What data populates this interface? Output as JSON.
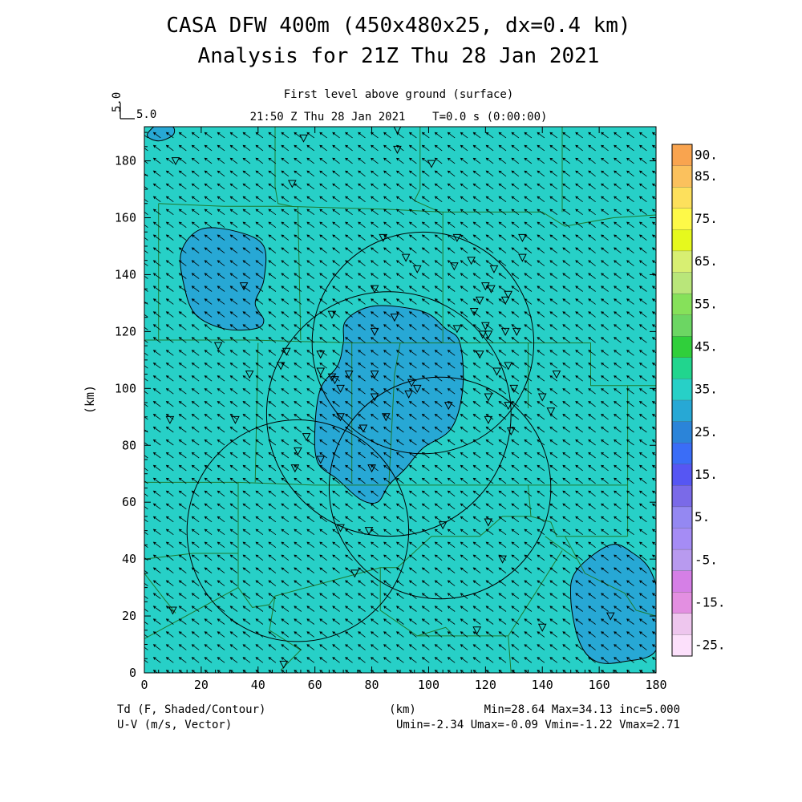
{
  "title_line1": "CASA DFW 400m (450x480x25, dx=0.4 km)",
  "title_line2": "Analysis for 21Z Thu 28 Jan 2021",
  "subtitle_level": "First level above ground (surface)",
  "subtitle_time": "21:50 Z Thu 28 Jan 2021    T=0.0 s (0:00:00)",
  "ref_vector": {
    "axis_label": "5.0",
    "label": "5.0"
  },
  "xlabel": "(km)",
  "ylabel": "(km)",
  "footer": {
    "left1": "Td (F, Shaded/Contour)",
    "left2": "U-V (m/s, Vector)",
    "center": "(km)",
    "stats1": "Min=28.64 Max=34.13 inc=5.000",
    "stats2": "Umin=-2.34 Umax=-0.09 Vmin=-1.22 Vmax=2.71"
  },
  "colorbar": {
    "labels": [
      "90.",
      "85.",
      "75.",
      "65.",
      "55.",
      "45.",
      "35.",
      "25.",
      "15.",
      "5.",
      "-5.",
      "-15.",
      "-25."
    ],
    "colors": [
      "#f9a44f",
      "#fbc15d",
      "#fde05c",
      "#fef948",
      "#e6f91d",
      "#d8ef72",
      "#b9e67a",
      "#86e15a",
      "#6cd663",
      "#30cf3b",
      "#21d58e",
      "#27d0c7",
      "#27a8d5",
      "#2b84d9",
      "#3a6df7",
      "#5656f3",
      "#7a6ae8",
      "#9488f2",
      "#a58cf5",
      "#b89aef",
      "#d57fe6",
      "#e38fe1",
      "#eec6ee",
      "#fce0fb"
    ]
  },
  "chart_data": {
    "type": "heatmap",
    "title": "CASA DFW 400m (450x480x25, dx=0.4 km)",
    "xlabel": "(km)",
    "ylabel": "(km)",
    "xlim": [
      0,
      180
    ],
    "ylim": [
      0,
      192
    ],
    "xticks": [
      0,
      20,
      40,
      60,
      80,
      100,
      120,
      140,
      160,
      180
    ],
    "yticks": [
      0,
      20,
      40,
      60,
      80,
      100,
      120,
      140,
      160,
      180
    ],
    "field": "Td (F)",
    "background_color": "#27d0c7",
    "moist_color": "#27a8d5",
    "td_min": 28.64,
    "td_max": 34.13,
    "contour_interval": 5.0,
    "u_range": [
      -2.34,
      -0.09
    ],
    "v_range": [
      -1.22,
      2.71
    ],
    "wind_vector": {
      "u": -1.2,
      "v": 0.9
    },
    "shaded_regions": [
      {
        "name": "northwest-patch",
        "level": 30,
        "outline": [
          [
            13,
            148
          ],
          [
            20,
            156
          ],
          [
            33,
            155
          ],
          [
            42,
            150
          ],
          [
            42,
            138
          ],
          [
            39,
            130
          ],
          [
            42,
            124
          ],
          [
            39,
            121
          ],
          [
            28,
            121
          ],
          [
            18,
            126
          ],
          [
            14,
            136
          ],
          [
            13,
            148
          ]
        ]
      },
      {
        "name": "central-patch",
        "level": 30,
        "outline": [
          [
            71,
            124
          ],
          [
            81,
            129
          ],
          [
            98,
            127
          ],
          [
            106,
            121
          ],
          [
            111,
            116
          ],
          [
            112,
            100
          ],
          [
            108,
            86
          ],
          [
            98,
            79
          ],
          [
            92,
            72
          ],
          [
            86,
            66
          ],
          [
            82,
            60
          ],
          [
            76,
            61
          ],
          [
            68,
            68
          ],
          [
            61,
            74
          ],
          [
            60,
            86
          ],
          [
            62,
            100
          ],
          [
            68,
            108
          ],
          [
            70,
            116
          ],
          [
            71,
            124
          ]
        ]
      },
      {
        "name": "southeast-patch",
        "level": 30,
        "outline": [
          [
            164,
            45
          ],
          [
            172,
            42
          ],
          [
            178,
            36
          ],
          [
            181,
            25
          ],
          [
            180,
            8
          ],
          [
            169,
            4
          ],
          [
            159,
            4
          ],
          [
            153,
            11
          ],
          [
            150,
            26
          ],
          [
            152,
            36
          ],
          [
            164,
            45
          ]
        ]
      },
      {
        "name": "corner-patch",
        "level": 30,
        "outline": [
          [
            5,
            193
          ],
          [
            10,
            192
          ],
          [
            10,
            189
          ],
          [
            5,
            187
          ],
          [
            1,
            189
          ],
          [
            5,
            193
          ]
        ]
      }
    ],
    "radar_circles": [
      {
        "center": [
          98,
          116
        ],
        "radius": 39
      },
      {
        "center": [
          86,
          91
        ],
        "radius": 43
      },
      {
        "center": [
          104,
          65
        ],
        "radius": 39
      },
      {
        "center": [
          54,
          50
        ],
        "radius": 39
      }
    ],
    "stations": [
      [
        11,
        180
      ],
      [
        56,
        188
      ],
      [
        89,
        191
      ],
      [
        89,
        184
      ],
      [
        101,
        179
      ],
      [
        52,
        172
      ],
      [
        84,
        153
      ],
      [
        110,
        153
      ],
      [
        133,
        153
      ],
      [
        92,
        146
      ],
      [
        133,
        146
      ],
      [
        115,
        145
      ],
      [
        109,
        143
      ],
      [
        123,
        142
      ],
      [
        96,
        142
      ],
      [
        120,
        136
      ],
      [
        122,
        135
      ],
      [
        118,
        131
      ],
      [
        127,
        131
      ],
      [
        128,
        133
      ],
      [
        81,
        135
      ],
      [
        35,
        136
      ],
      [
        116,
        127
      ],
      [
        66,
        126
      ],
      [
        88,
        125
      ],
      [
        110,
        121
      ],
      [
        120,
        122
      ],
      [
        119,
        119
      ],
      [
        121,
        119
      ],
      [
        127,
        120
      ],
      [
        131,
        120
      ],
      [
        81,
        120
      ],
      [
        26,
        115
      ],
      [
        50,
        113
      ],
      [
        62,
        112
      ],
      [
        118,
        112
      ],
      [
        124,
        106
      ],
      [
        128,
        108
      ],
      [
        145,
        105
      ],
      [
        37,
        105
      ],
      [
        48,
        108
      ],
      [
        62,
        106
      ],
      [
        72,
        105
      ],
      [
        81,
        105
      ],
      [
        66,
        104
      ],
      [
        67,
        103
      ],
      [
        69,
        100
      ],
      [
        94,
        102
      ],
      [
        93,
        98
      ],
      [
        96,
        100
      ],
      [
        81,
        97
      ],
      [
        121,
        97
      ],
      [
        130,
        100
      ],
      [
        140,
        97
      ],
      [
        85,
        90
      ],
      [
        121,
        89
      ],
      [
        69,
        90
      ],
      [
        107,
        94
      ],
      [
        128,
        94
      ],
      [
        143,
        92
      ],
      [
        9,
        89
      ],
      [
        32,
        89
      ],
      [
        77,
        86
      ],
      [
        129,
        85
      ],
      [
        57,
        83
      ],
      [
        54,
        78
      ],
      [
        62,
        75
      ],
      [
        53,
        72
      ],
      [
        80,
        72
      ],
      [
        69,
        51
      ],
      [
        79,
        50
      ],
      [
        121,
        53
      ],
      [
        105,
        52
      ],
      [
        126,
        40
      ],
      [
        74,
        35
      ],
      [
        10,
        22
      ],
      [
        164,
        20
      ],
      [
        117,
        15
      ],
      [
        140,
        16
      ],
      [
        49,
        3
      ]
    ],
    "boundaries": [
      [
        [
          0,
          117
        ],
        [
          5,
          117
        ],
        [
          38,
          117
        ],
        [
          73,
          116
        ],
        [
          145,
          116
        ],
        [
          157,
          116
        ],
        [
          157,
          101
        ],
        [
          170,
          101
        ],
        [
          180,
          101
        ]
      ],
      [
        [
          0,
          67
        ],
        [
          20,
          67
        ],
        [
          33,
          67
        ],
        [
          60,
          66
        ],
        [
          100,
          66
        ],
        [
          135,
          66
        ],
        [
          170,
          66
        ]
      ],
      [
        [
          0,
          192
        ],
        [
          0,
          0
        ]
      ],
      [
        [
          5,
          165
        ],
        [
          28,
          164
        ],
        [
          50,
          164
        ],
        [
          85,
          163
        ],
        [
          105,
          162
        ],
        [
          140,
          162
        ],
        [
          148,
          157
        ],
        [
          165,
          160
        ],
        [
          180,
          161
        ]
      ],
      [
        [
          46,
          192
        ],
        [
          46,
          171
        ],
        [
          47,
          165
        ],
        [
          52,
          164
        ]
      ],
      [
        [
          97,
          192
        ],
        [
          97,
          170
        ],
        [
          95,
          166
        ],
        [
          104,
          162
        ]
      ],
      [
        [
          147,
          192
        ],
        [
          147,
          162
        ]
      ],
      [
        [
          5,
          165
        ],
        [
          5,
          117
        ]
      ],
      [
        [
          54,
          164
        ],
        [
          55,
          117
        ]
      ],
      [
        [
          40,
          116
        ],
        [
          39,
          67
        ]
      ],
      [
        [
          73,
          116
        ],
        [
          73,
          67
        ]
      ],
      [
        [
          90,
          116
        ],
        [
          88,
          105
        ],
        [
          86,
          66
        ]
      ],
      [
        [
          105,
          162
        ],
        [
          105,
          116
        ]
      ],
      [
        [
          135,
          116
        ],
        [
          135,
          93
        ]
      ],
      [
        [
          135,
          66
        ],
        [
          136,
          55
        ],
        [
          143,
          53
        ],
        [
          145,
          48
        ],
        [
          170,
          48
        ]
      ],
      [
        [
          170,
          101
        ],
        [
          170,
          48
        ]
      ],
      [
        [
          0,
          40
        ],
        [
          17,
          42
        ],
        [
          33,
          42
        ],
        [
          33,
          30
        ],
        [
          38,
          23
        ],
        [
          44,
          24
        ],
        [
          46,
          27
        ],
        [
          57,
          30
        ],
        [
          83,
          37
        ],
        [
          89,
          37
        ],
        [
          101,
          48
        ],
        [
          118,
          48
        ],
        [
          126,
          55
        ],
        [
          136,
          55
        ]
      ],
      [
        [
          33,
          67
        ],
        [
          33,
          42
        ]
      ],
      [
        [
          0,
          12
        ],
        [
          33,
          30
        ]
      ],
      [
        [
          0,
          35
        ],
        [
          7,
          26
        ],
        [
          11,
          21
        ]
      ],
      [
        [
          83,
          37
        ],
        [
          83,
          22
        ],
        [
          96,
          13
        ],
        [
          101,
          13
        ],
        [
          128,
          13
        ],
        [
          147,
          43
        ]
      ],
      [
        [
          96,
          13
        ],
        [
          106,
          16
        ],
        [
          108,
          14
        ]
      ],
      [
        [
          46,
          27
        ],
        [
          44,
          15
        ],
        [
          55,
          8
        ],
        [
          48,
          1
        ]
      ],
      [
        [
          128,
          13
        ],
        [
          129,
          0
        ]
      ],
      [
        [
          141,
          48
        ],
        [
          152,
          40
        ]
      ],
      [
        [
          148,
          48
        ],
        [
          155,
          35
        ],
        [
          169,
          28
        ],
        [
          173,
          22
        ],
        [
          180,
          20
        ]
      ]
    ]
  }
}
